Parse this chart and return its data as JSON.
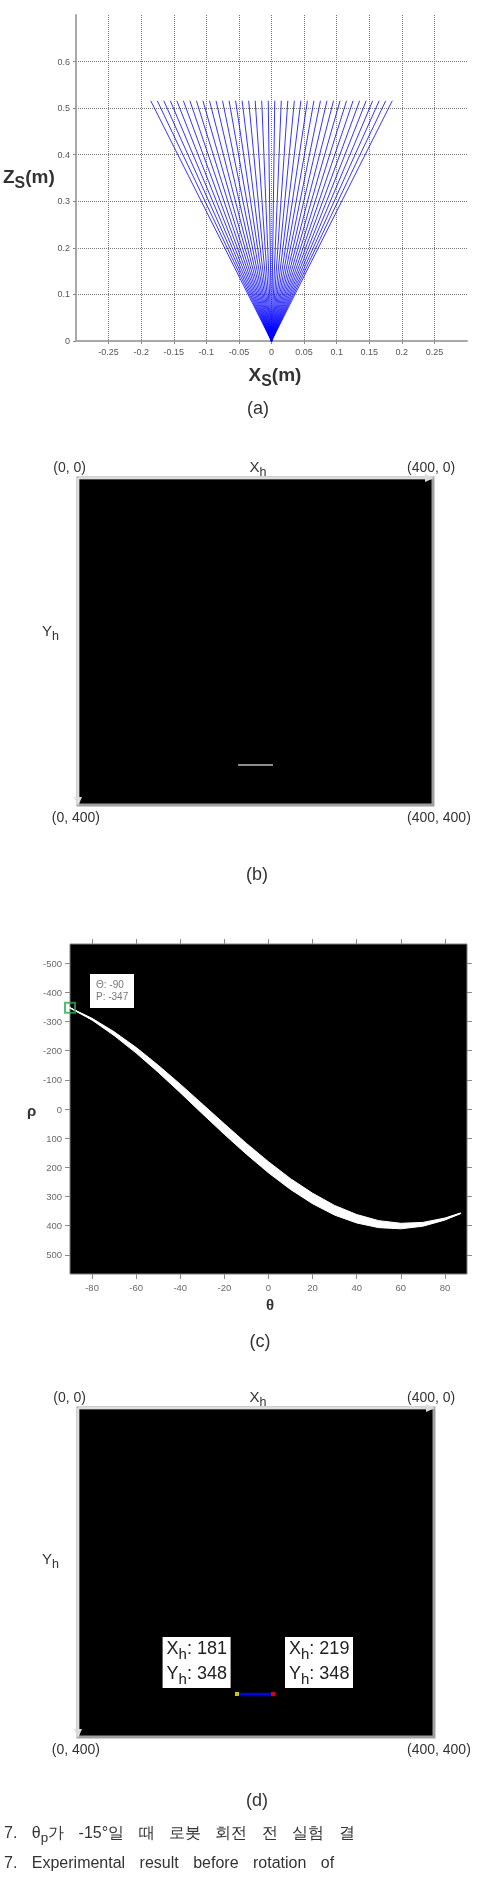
{
  "chart_data": [
    {
      "type": "line",
      "title": "(a)",
      "xlabel": "X$_{S}$(m)",
      "ylabel": "Z$_{S}$(m)",
      "series": [
        {
          "color": "#0000ff",
          "x": [
            0,
            -0.185
          ],
          "values": [
            0,
            0.515
          ]
        },
        {
          "color": "#0000ff",
          "x": [
            0,
            -0.175
          ],
          "values": [
            0,
            0.515
          ]
        },
        {
          "color": "#0000ff",
          "x": [
            0,
            -0.165
          ],
          "values": [
            0,
            0.515
          ]
        },
        {
          "color": "#0000ff",
          "x": [
            0,
            -0.155
          ],
          "values": [
            0,
            0.515
          ]
        },
        {
          "color": "#0000ff",
          "x": [
            0,
            -0.145
          ],
          "values": [
            0,
            0.515
          ]
        },
        {
          "color": "#0000ff",
          "x": [
            0,
            -0.135
          ],
          "values": [
            0,
            0.515
          ]
        },
        {
          "color": "#0000ff",
          "x": [
            0,
            -0.125
          ],
          "values": [
            0,
            0.515
          ]
        },
        {
          "color": "#0000ff",
          "x": [
            0,
            -0.115
          ],
          "values": [
            0,
            0.515
          ]
        },
        {
          "color": "#0000ff",
          "x": [
            0,
            -0.105
          ],
          "values": [
            0,
            0.515
          ]
        },
        {
          "color": "#0000ff",
          "x": [
            0,
            -0.095
          ],
          "values": [
            0,
            0.515
          ]
        },
        {
          "color": "#0000ff",
          "x": [
            0,
            -0.085
          ],
          "values": [
            0,
            0.515
          ]
        },
        {
          "color": "#0000ff",
          "x": [
            0,
            -0.075
          ],
          "values": [
            0,
            0.515
          ]
        },
        {
          "color": "#0000ff",
          "x": [
            0,
            -0.065
          ],
          "values": [
            0,
            0.515
          ]
        },
        {
          "color": "#0000ff",
          "x": [
            0,
            -0.055
          ],
          "values": [
            0,
            0.515
          ]
        },
        {
          "color": "#0000ff",
          "x": [
            0,
            -0.045
          ],
          "values": [
            0,
            0.515
          ]
        },
        {
          "color": "#0000ff",
          "x": [
            0,
            -0.035
          ],
          "values": [
            0,
            0.515
          ]
        },
        {
          "color": "#0000ff",
          "x": [
            0,
            -0.025
          ],
          "values": [
            0,
            0.515
          ]
        },
        {
          "color": "#0000ff",
          "x": [
            0,
            -0.015
          ],
          "values": [
            0,
            0.515
          ]
        },
        {
          "color": "#0000ff",
          "x": [
            0,
            -0.005
          ],
          "values": [
            0,
            0.515
          ]
        },
        {
          "color": "#0000ff",
          "x": [
            0,
            0.005
          ],
          "values": [
            0,
            0.515
          ]
        },
        {
          "color": "#0000ff",
          "x": [
            0,
            0.015
          ],
          "values": [
            0,
            0.515
          ]
        },
        {
          "color": "#0000ff",
          "x": [
            0,
            0.025
          ],
          "values": [
            0,
            0.515
          ]
        },
        {
          "color": "#0000ff",
          "x": [
            0,
            0.035
          ],
          "values": [
            0,
            0.515
          ]
        },
        {
          "color": "#0000ff",
          "x": [
            0,
            0.045
          ],
          "values": [
            0,
            0.515
          ]
        },
        {
          "color": "#0000ff",
          "x": [
            0,
            0.055
          ],
          "values": [
            0,
            0.515
          ]
        },
        {
          "color": "#0000ff",
          "x": [
            0,
            0.065
          ],
          "values": [
            0,
            0.515
          ]
        },
        {
          "color": "#0000ff",
          "x": [
            0,
            0.075
          ],
          "values": [
            0,
            0.515
          ]
        },
        {
          "color": "#0000ff",
          "x": [
            0,
            0.085
          ],
          "values": [
            0,
            0.515
          ]
        },
        {
          "color": "#0000ff",
          "x": [
            0,
            0.095
          ],
          "values": [
            0,
            0.515
          ]
        },
        {
          "color": "#0000ff",
          "x": [
            0,
            0.105
          ],
          "values": [
            0,
            0.515
          ]
        },
        {
          "color": "#0000ff",
          "x": [
            0,
            0.115
          ],
          "values": [
            0,
            0.515
          ]
        },
        {
          "color": "#0000ff",
          "x": [
            0,
            0.125
          ],
          "values": [
            0,
            0.515
          ]
        },
        {
          "color": "#0000ff",
          "x": [
            0,
            0.135
          ],
          "values": [
            0,
            0.515
          ]
        },
        {
          "color": "#0000ff",
          "x": [
            0,
            0.145
          ],
          "values": [
            0,
            0.515
          ]
        },
        {
          "color": "#0000ff",
          "x": [
            0,
            0.155
          ],
          "values": [
            0,
            0.515
          ]
        },
        {
          "color": "#0000ff",
          "x": [
            0,
            0.165
          ],
          "values": [
            0,
            0.515
          ]
        },
        {
          "color": "#0000ff",
          "x": [
            0,
            0.175
          ],
          "values": [
            0,
            0.515
          ]
        },
        {
          "color": "#0000ff",
          "x": [
            0,
            0.185
          ],
          "values": [
            0,
            0.515
          ]
        }
      ],
      "xlim": [
        -0.3,
        0.3
      ],
      "xticks": [
        -0.25,
        -0.2,
        -0.15,
        -0.1,
        -0.05,
        0,
        0.05,
        0.1,
        0.15,
        0.2,
        0.25
      ],
      "ylim": [
        0,
        0.7
      ],
      "yticks": [
        0,
        0.1,
        0.2,
        0.3,
        0.4,
        0.5,
        0.6
      ],
      "grid": true
    },
    {
      "type": "other",
      "title": "(b)",
      "xlabel": "X$_{h}$",
      "ylabel": "Y$_{h}$",
      "annotations": [
        "(0, 0)",
        "(400, 0)",
        "(0, 400)",
        "(400, 400)"
      ]
    },
    {
      "type": "line",
      "title": "(c)",
      "xlabel": "θ",
      "ylabel": "ρ",
      "series": [
        {
          "color": "#ffffff",
          "x": [
            -90,
            -80,
            -70,
            -60,
            -50,
            -40,
            -30,
            -20,
            -10,
            0,
            10,
            20,
            30,
            40,
            50,
            60,
            70,
            80,
            87
          ],
          "values": [
            -347,
            -308,
            -259,
            -201,
            -138,
            -71,
            -1,
            69,
            137,
            200,
            257,
            307,
            347,
            377,
            395,
            401,
            395,
            377,
            358
          ],
          "lower": [
            -347,
            -311,
            -265,
            -211,
            -150,
            -85,
            -17,
            51,
            118,
            181,
            239,
            289,
            331,
            362,
            383,
            392,
            389,
            374,
            357
          ],
          "upper": [
            -347,
            -305,
            -252,
            -192,
            -126,
            -56,
            16,
            87,
            155,
            219,
            276,
            325,
            364,
            391,
            407,
            411,
            402,
            381,
            359
          ]
        },
        {
          "type": "scatter",
          "marker": "square",
          "color": "#22b14c",
          "x": [
            -90
          ],
          "values": [
            -347
          ]
        }
      ],
      "xlim": [
        -90,
        90
      ],
      "xticks": [
        -80,
        -60,
        -40,
        -20,
        0,
        20,
        40,
        60,
        80
      ],
      "ylim": [
        566,
        -566
      ],
      "yticks": [
        -500,
        -400,
        -300,
        -200,
        -100,
        0,
        100,
        200,
        300,
        400,
        500
      ],
      "annotations": [
        {
          "text": "Θ: -90\nP: -347",
          "x": -90,
          "y": -347
        }
      ]
    },
    {
      "type": "other",
      "title": "(d)",
      "xlabel": "X$_{h}$",
      "ylabel": "Y$_{h}$",
      "annotations": [
        "(0, 0)",
        "(400, 0)",
        "(0, 400)",
        "(400, 400)",
        "X$_{h}$: 181\nY$_{h}$: 348",
        "X$_{h}$: 219\nY$_{h}$: 348",
        "7. θ$_{p}$가 -15°일 때 로봇 회전 전 실험 결",
        "7. Experimental result before rotation of"
      ]
    }
  ]
}
